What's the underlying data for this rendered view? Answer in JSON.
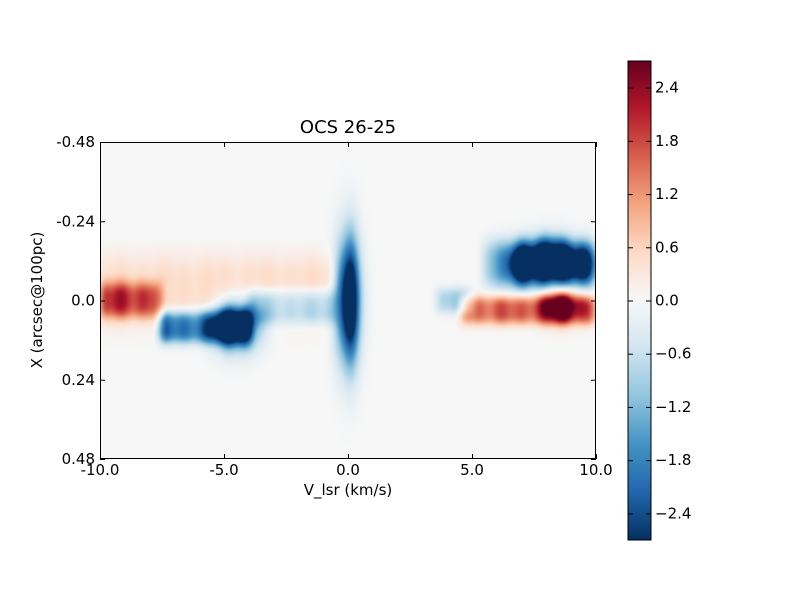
{
  "chart_data": {
    "type": "heatmap",
    "title": "OCS 26-25",
    "xlabel": "V_lsr (km/s)",
    "ylabel": "X (arcsec@100pc)",
    "xlim": [
      -10.0,
      10.0
    ],
    "ylim": [
      0.48,
      -0.48
    ],
    "x_ticks": [
      -10.0,
      -5.0,
      0.0,
      5.0,
      10.0
    ],
    "x_tick_labels": [
      "-10.0",
      "-5.0",
      "0.0",
      "5.0",
      "10.0"
    ],
    "y_ticks": [
      -0.48,
      -0.24,
      0.0,
      0.24,
      0.48
    ],
    "y_tick_labels": [
      "-0.48",
      "-0.24",
      "0.0",
      "0.24",
      "0.48"
    ],
    "colormap": "RdBu_r",
    "colorbar": {
      "range": [
        -2.7,
        2.7
      ],
      "ticks": [
        2.4,
        1.8,
        1.2,
        0.6,
        0.0,
        -0.6,
        -1.2,
        -1.8,
        -2.4
      ],
      "tick_labels": [
        "2.4",
        "1.8",
        "1.2",
        "0.6",
        "0.0",
        "−0.6",
        "−1.2",
        "−1.8",
        "−2.4"
      ],
      "colors": [
        "#053061",
        "#2166ac",
        "#4393c3",
        "#92c5de",
        "#d1e5f0",
        "#f7f7f7",
        "#fddbc7",
        "#f4a582",
        "#d6604d",
        "#b2182b",
        "#67001f"
      ]
    },
    "background_value": 0.0,
    "features": [
      {
        "kind": "band",
        "v_range": [
          -10.0,
          -7.6
        ],
        "x_center": 0.0,
        "x_halfwidth": 0.055,
        "value": 1.55
      },
      {
        "kind": "band",
        "v_range": [
          -10.0,
          -0.5
        ],
        "x_center": -0.03,
        "x_halfwidth": 0.11,
        "value": 0.5
      },
      {
        "kind": "band",
        "v_range": [
          -7.6,
          -4.0
        ],
        "x_center": 0.08,
        "x_halfwidth": 0.05,
        "value": -2.2
      },
      {
        "kind": "blob",
        "v": -4.5,
        "x": 0.075,
        "v_sigma": 0.6,
        "x_sigma": 0.05,
        "value": -3.5
      },
      {
        "kind": "band",
        "v_range": [
          -4.0,
          -0.5
        ],
        "x_center": 0.02,
        "x_halfwidth": 0.055,
        "value": -1.15
      },
      {
        "kind": "blob",
        "v": 0.0,
        "x": 0.0,
        "v_sigma": 0.33,
        "x_sigma": 0.13,
        "value": -3.8
      },
      {
        "kind": "band",
        "v_range": [
          4.6,
          10.0
        ],
        "x_center": 0.03,
        "x_halfwidth": 0.045,
        "value": 1.6
      },
      {
        "kind": "band",
        "v_range": [
          3.6,
          5.0
        ],
        "x_center": 0.0,
        "x_halfwidth": 0.04,
        "value": -0.9
      },
      {
        "kind": "band",
        "v_range": [
          5.5,
          10.0
        ],
        "x_center": -0.11,
        "x_halfwidth": 0.075,
        "value": -1.3
      },
      {
        "kind": "blob",
        "v": 7.1,
        "x": -0.11,
        "v_sigma": 0.4,
        "x_sigma": 0.04,
        "value": -3.2
      },
      {
        "kind": "blob",
        "v": 8.1,
        "x": -0.12,
        "v_sigma": 0.6,
        "x_sigma": 0.045,
        "value": -3.5
      },
      {
        "kind": "blob",
        "v": 9.3,
        "x": -0.11,
        "v_sigma": 0.45,
        "x_sigma": 0.04,
        "value": -2.8
      },
      {
        "kind": "blob",
        "v": 8.6,
        "x": 0.015,
        "v_sigma": 0.6,
        "x_sigma": 0.035,
        "value": 2.2
      }
    ]
  }
}
